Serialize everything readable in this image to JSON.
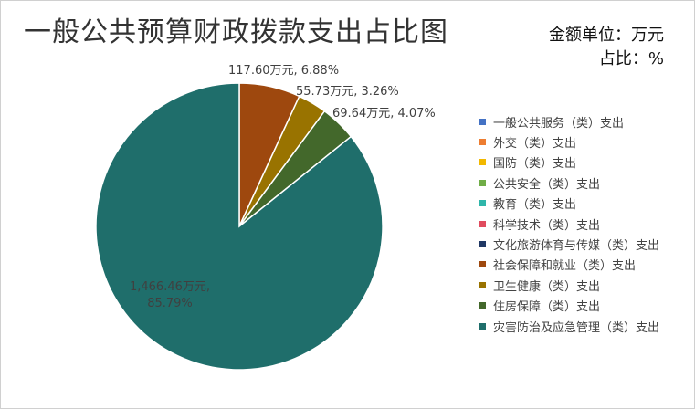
{
  "header": {
    "title": "一般公共预算财政拨款支出占比图",
    "unit_line1": "金额单位：万元",
    "unit_line2": "占比：%"
  },
  "chart_data": {
    "type": "pie",
    "title": "一般公共预算财政拨款支出占比图",
    "legend_position": "right",
    "slices": [
      {
        "name": "一般公共服务（类）支出",
        "value": 0,
        "percent": 0,
        "color": "#4472C4",
        "label": ""
      },
      {
        "name": "外交（类）支出",
        "value": 0,
        "percent": 0,
        "color": "#ED7D31",
        "label": ""
      },
      {
        "name": "国防（类）支出",
        "value": 0,
        "percent": 0,
        "color": "#F2B800",
        "label": ""
      },
      {
        "name": "公共安全（类）支出",
        "value": 0,
        "percent": 0,
        "color": "#70AD47",
        "label": ""
      },
      {
        "name": "教育（类）支出",
        "value": 0,
        "percent": 0,
        "color": "#2FB6AA",
        "label": ""
      },
      {
        "name": "科学技术（类）支出",
        "value": 0,
        "percent": 0,
        "color": "#E04B5E",
        "label": ""
      },
      {
        "name": "文化旅游体育与传媒（类）支出",
        "value": 0,
        "percent": 0,
        "color": "#203864",
        "label": ""
      },
      {
        "name": "社会保障和就业（类）支出",
        "value": 117.6,
        "percent": 6.88,
        "color": "#9E480E",
        "label": "117.60万元, 6.88%"
      },
      {
        "name": "卫生健康（类）支出",
        "value": 55.73,
        "percent": 3.26,
        "color": "#997300",
        "label": "55.73万元, 3.26%"
      },
      {
        "name": "住房保障（类）支出",
        "value": 69.64,
        "percent": 4.07,
        "color": "#43682B",
        "label": "69.64万元, 4.07%"
      },
      {
        "name": "灾害防治及应急管理（类）支出",
        "value": 1466.46,
        "percent": 85.79,
        "color": "#1F6E6B",
        "label_line1": "1,466.46万元,",
        "label_line2": "85.79%"
      }
    ]
  }
}
